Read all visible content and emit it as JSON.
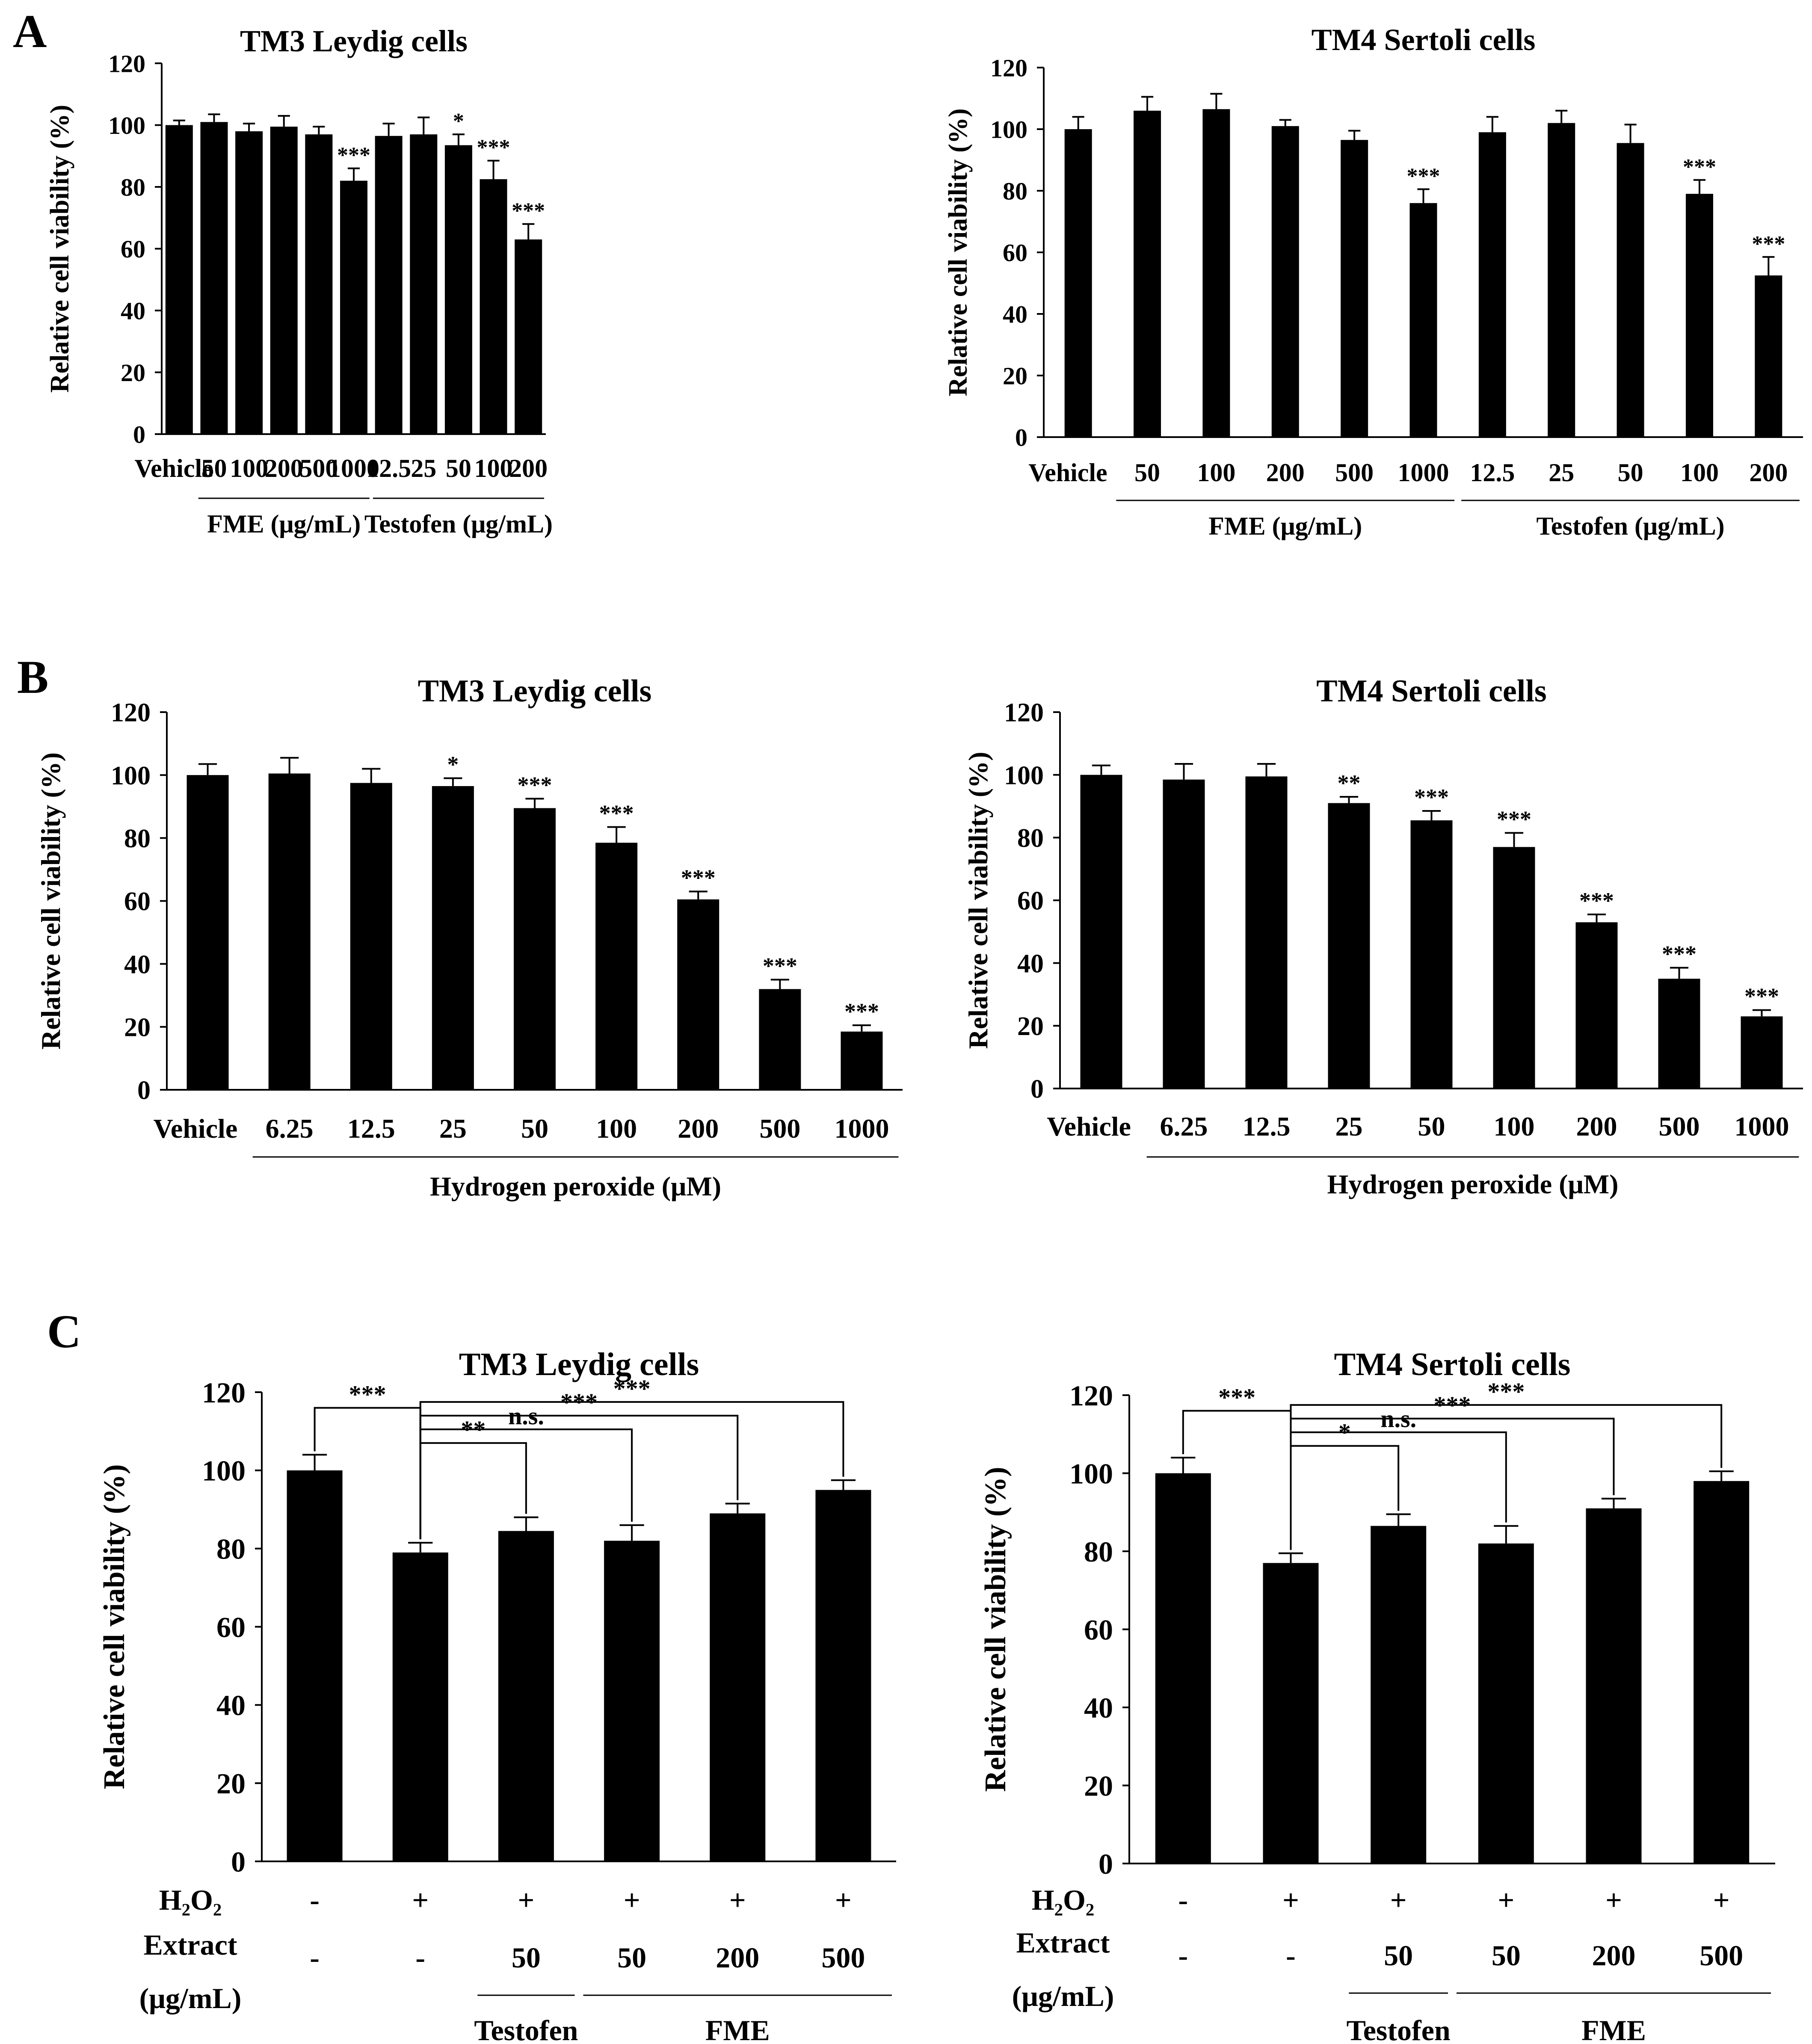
{
  "figure": {
    "panel_labels": [
      "A",
      "B",
      "C"
    ]
  },
  "chart_data": [
    {
      "id": "A-left",
      "panel": "A",
      "type": "bar",
      "title": "TM3 Leydig cells",
      "ylabel": "Relative cell viability (%)",
      "xlabel": "",
      "ylim": [
        0,
        120
      ],
      "yticks": [
        0,
        20,
        40,
        60,
        80,
        100,
        120
      ],
      "categories": [
        "Vehicle",
        "50",
        "100",
        "200",
        "500",
        "1000",
        "12.5",
        "25",
        "50",
        "100",
        "200"
      ],
      "values": [
        100,
        101,
        98,
        99.5,
        97,
        82,
        96.5,
        97,
        93.5,
        82.5,
        63
      ],
      "errors": [
        1.5,
        2.5,
        2.5,
        3.5,
        2.5,
        4,
        4,
        5.5,
        3.5,
        6,
        5
      ],
      "significance": [
        "",
        "",
        "",
        "",
        "",
        "***",
        "",
        "",
        "*",
        "***",
        "***"
      ],
      "groups": [
        {
          "label": "FME (μg/mL)",
          "from": 1,
          "to": 5
        },
        {
          "label": "Testofen (μg/mL)",
          "from": 6,
          "to": 10
        }
      ],
      "comparisons": [],
      "treatment_rows": []
    },
    {
      "id": "A-right",
      "panel": "A",
      "type": "bar",
      "title": "TM4 Sertoli cells",
      "ylabel": "Relative cell viability (%)",
      "xlabel": "",
      "ylim": [
        0,
        120
      ],
      "yticks": [
        0,
        20,
        40,
        60,
        80,
        100,
        120
      ],
      "categories": [
        "Vehicle",
        "50",
        "100",
        "200",
        "500",
        "1000",
        "12.5",
        "25",
        "50",
        "100",
        "200"
      ],
      "values": [
        100,
        106,
        106.5,
        101,
        96.5,
        76,
        99,
        102,
        95.5,
        79,
        52.5
      ],
      "errors": [
        4,
        4.5,
        5,
        2,
        3,
        4.5,
        5,
        4,
        6,
        4.5,
        6
      ],
      "significance": [
        "",
        "",
        "",
        "",
        "",
        "***",
        "",
        "",
        "",
        "***",
        "***"
      ],
      "groups": [
        {
          "label": "FME (μg/mL)",
          "from": 1,
          "to": 5
        },
        {
          "label": "Testofen (μg/mL)",
          "from": 6,
          "to": 10
        }
      ],
      "comparisons": [],
      "treatment_rows": []
    },
    {
      "id": "B-left",
      "panel": "B",
      "type": "bar",
      "title": "TM3 Leydig cells",
      "ylabel": "Relative cell viability (%)",
      "xlabel": "",
      "ylim": [
        0,
        120
      ],
      "yticks": [
        0,
        20,
        40,
        60,
        80,
        100,
        120
      ],
      "categories": [
        "Vehicle",
        "6.25",
        "12.5",
        "25",
        "50",
        "100",
        "200",
        "500",
        "1000"
      ],
      "values": [
        100,
        100.5,
        97.5,
        96.5,
        89.5,
        78.5,
        60.5,
        32,
        18.5
      ],
      "errors": [
        3.5,
        5,
        4.5,
        2.5,
        3,
        5,
        2.5,
        3,
        2
      ],
      "significance": [
        "",
        "",
        "",
        "*",
        "***",
        "***",
        "***",
        "***",
        "***"
      ],
      "groups": [
        {
          "label": "Hydrogen peroxide (μM)",
          "from": 1,
          "to": 8
        }
      ],
      "comparisons": [],
      "treatment_rows": []
    },
    {
      "id": "B-right",
      "panel": "B",
      "type": "bar",
      "title": "TM4 Sertoli cells",
      "ylabel": "Relative cell viability (%)",
      "xlabel": "",
      "ylim": [
        0,
        120
      ],
      "yticks": [
        0,
        20,
        40,
        60,
        80,
        100,
        120
      ],
      "categories": [
        "Vehicle",
        "6.25",
        "12.5",
        "25",
        "50",
        "100",
        "200",
        "500",
        "1000"
      ],
      "values": [
        100,
        98.5,
        99.5,
        91,
        85.5,
        77,
        53,
        35,
        23
      ],
      "errors": [
        3,
        5,
        4,
        2,
        3,
        4.5,
        2.5,
        3.5,
        2
      ],
      "significance": [
        "",
        "",
        "",
        "**",
        "***",
        "***",
        "***",
        "***",
        "***"
      ],
      "groups": [
        {
          "label": "Hydrogen peroxide (μM)",
          "from": 1,
          "to": 8
        }
      ],
      "comparisons": [],
      "treatment_rows": []
    },
    {
      "id": "C-left",
      "panel": "C",
      "type": "bar",
      "title": "TM3 Leydig cells",
      "ylabel": "Relative cell viability (%)",
      "xlabel": "",
      "ylim": [
        0,
        120
      ],
      "yticks": [
        0,
        20,
        40,
        60,
        80,
        100,
        120
      ],
      "categories": [
        "",
        "",
        "",
        "",
        "",
        ""
      ],
      "values": [
        100,
        79,
        84.5,
        82,
        89,
        95
      ],
      "errors": [
        4,
        2.5,
        3.5,
        4,
        2.5,
        2.5
      ],
      "significance": [
        "",
        "",
        "",
        "",
        "",
        ""
      ],
      "groups": [],
      "comparisons": [
        {
          "from": 0,
          "to": 1,
          "label": "***"
        },
        {
          "from": 1,
          "to": 2,
          "label": "**"
        },
        {
          "from": 1,
          "to": 3,
          "label": "n.s."
        },
        {
          "from": 1,
          "to": 4,
          "label": "***"
        },
        {
          "from": 1,
          "to": 5,
          "label": "***"
        }
      ],
      "treatment_rows": [
        {
          "label": "H₂O₂",
          "values": [
            "-",
            "+",
            "+",
            "+",
            "+",
            "+"
          ]
        },
        {
          "label_lines": [
            "Extract",
            "(μg/mL)"
          ],
          "values": [
            "-",
            "-",
            "50",
            "50",
            "200",
            "500"
          ]
        }
      ],
      "treatment_groups": [
        {
          "label": "Testofen",
          "from": 2,
          "to": 2
        },
        {
          "label": "FME",
          "from": 3,
          "to": 5
        }
      ]
    },
    {
      "id": "C-right",
      "panel": "C",
      "type": "bar",
      "title": "TM4 Sertoli cells",
      "ylabel": "Relative cell viability (%)",
      "xlabel": "",
      "ylim": [
        0,
        120
      ],
      "yticks": [
        0,
        20,
        40,
        60,
        80,
        100,
        120
      ],
      "categories": [
        "",
        "",
        "",
        "",
        "",
        ""
      ],
      "values": [
        100,
        77,
        86.5,
        82,
        91,
        98
      ],
      "errors": [
        4,
        2.5,
        3,
        4.5,
        2.5,
        2.5
      ],
      "significance": [
        "",
        "",
        "",
        "",
        "",
        ""
      ],
      "groups": [],
      "comparisons": [
        {
          "from": 0,
          "to": 1,
          "label": "***"
        },
        {
          "from": 1,
          "to": 2,
          "label": "*"
        },
        {
          "from": 1,
          "to": 3,
          "label": "n.s."
        },
        {
          "from": 1,
          "to": 4,
          "label": "***"
        },
        {
          "from": 1,
          "to": 5,
          "label": "***"
        }
      ],
      "treatment_rows": [
        {
          "label": "H₂O₂",
          "values": [
            "-",
            "+",
            "+",
            "+",
            "+",
            "+"
          ]
        },
        {
          "label_lines": [
            "Extract",
            "(μg/mL)"
          ],
          "values": [
            "-",
            "-",
            "50",
            "50",
            "200",
            "500"
          ]
        }
      ],
      "treatment_groups": [
        {
          "label": "Testofen",
          "from": 2,
          "to": 2
        },
        {
          "label": "FME",
          "from": 3,
          "to": 5
        }
      ]
    }
  ]
}
